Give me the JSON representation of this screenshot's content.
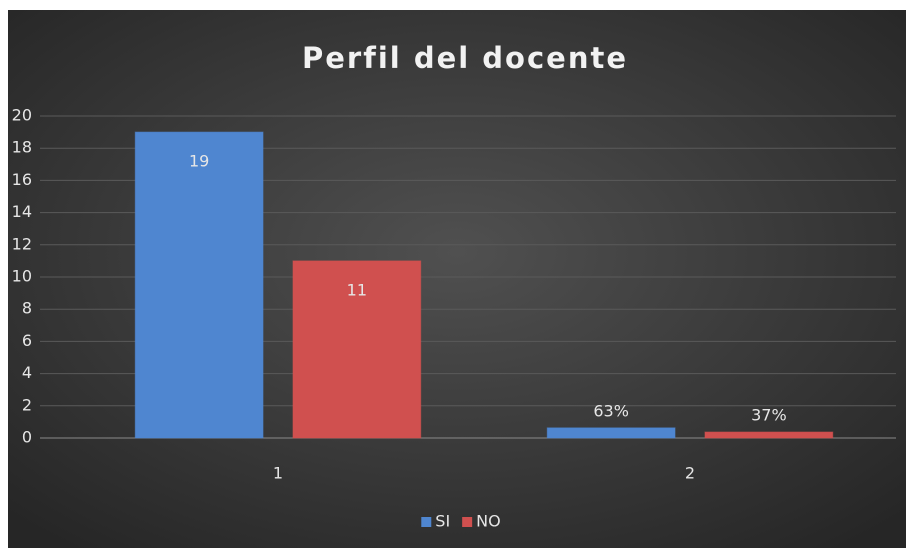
{
  "chart_data": {
    "type": "bar",
    "title": "Perfil del docente",
    "categories": [
      "1",
      "2"
    ],
    "series": [
      {
        "name": "SI",
        "color": "#4f86d0",
        "values": [
          19,
          0.63
        ],
        "value_labels": [
          "19",
          "63%"
        ]
      },
      {
        "name": "NO",
        "color": "#d0504f",
        "values": [
          11,
          0.37
        ],
        "value_labels": [
          "11",
          "37%"
        ]
      }
    ],
    "ylim": [
      0,
      20
    ],
    "yticks": [
      0,
      2,
      4,
      6,
      8,
      10,
      12,
      14,
      16,
      18,
      20
    ],
    "grid": true,
    "legend": "bottom"
  }
}
